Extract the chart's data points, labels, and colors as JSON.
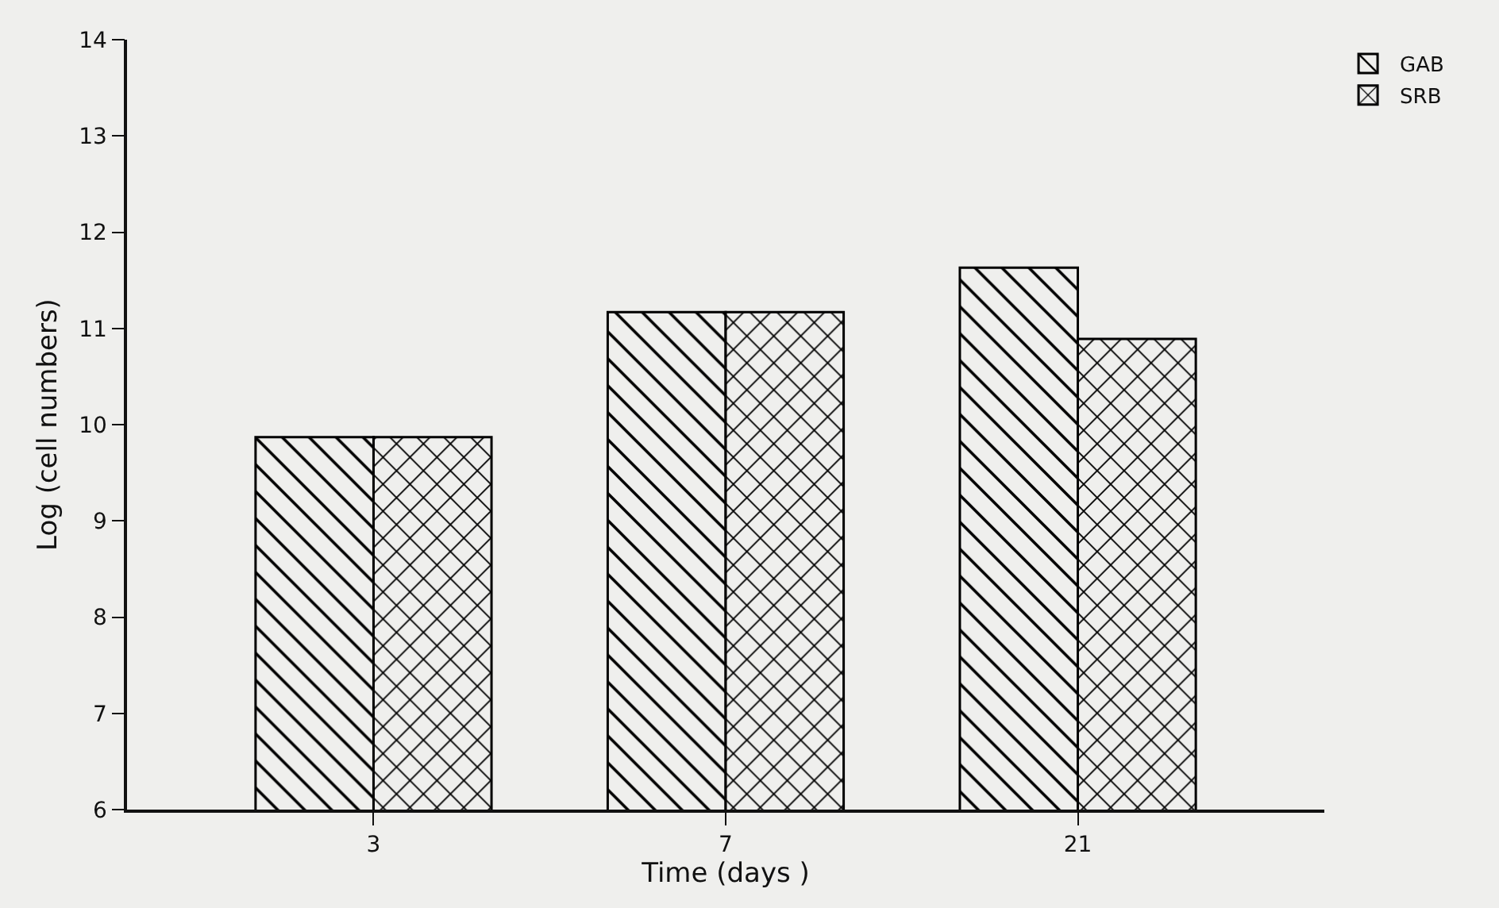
{
  "chart_data": {
    "type": "bar",
    "xlabel": "Time (days )",
    "ylabel": "Log (cell numbers)",
    "categories": [
      "3",
      "7",
      "21"
    ],
    "series": [
      {
        "name": "GAB",
        "color": "#000000",
        "values": [
          9.87,
          11.17,
          11.63
        ]
      },
      {
        "name": "SRB",
        "color": "#000000",
        "values": [
          9.87,
          11.17,
          10.89
        ]
      }
    ],
    "ylim": [
      6,
      14
    ],
    "yticks": [
      6,
      7,
      8,
      9,
      10,
      11,
      12,
      13,
      14
    ],
    "grid": false,
    "legend": "top right"
  }
}
